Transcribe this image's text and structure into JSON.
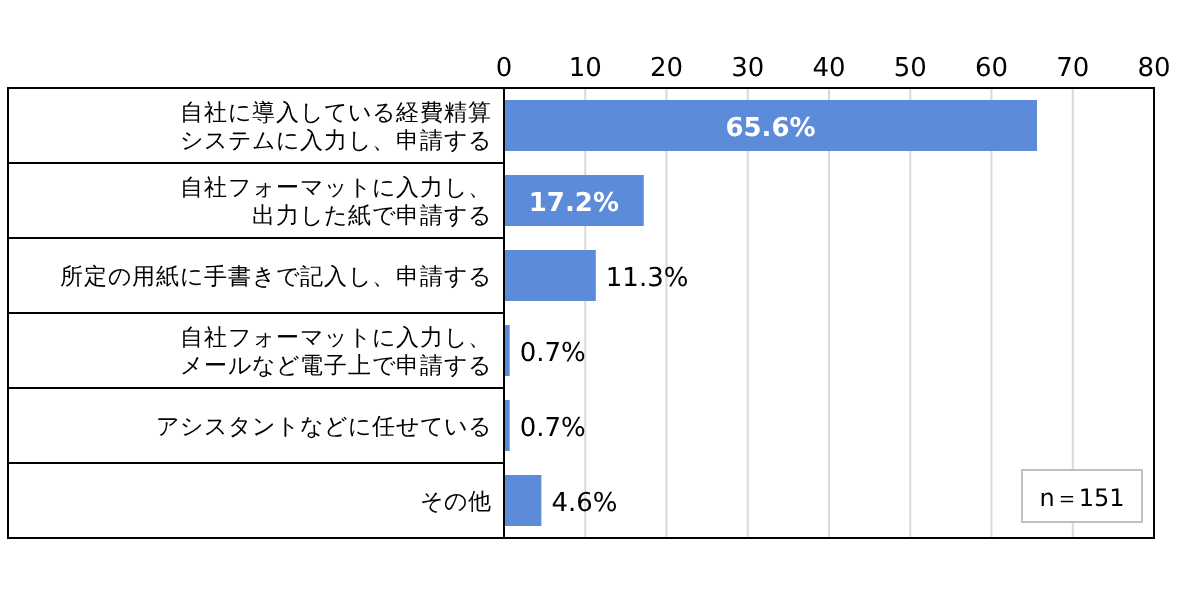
{
  "chart_data": {
    "type": "bar",
    "orientation": "horizontal",
    "categories": [
      "自社に導入している経費精算システムに入力し、申請する",
      "自社フォーマットに入力し、出力した紙で申請する",
      "所定の用紙に手書きで記入し、申請する",
      "自社フォーマットに入力し、メールなど電子上で申請する",
      "アシスタントなどに任せている",
      "その他"
    ],
    "values": [
      65.6,
      17.2,
      11.3,
      0.7,
      0.7,
      4.6
    ],
    "value_labels": [
      "65.6%",
      "17.2%",
      "11.3%",
      "0.7%",
      "0.7%",
      "4.6%"
    ],
    "color": "#5b8bd9",
    "xlim": [
      0,
      80
    ],
    "xticks": [
      0,
      10,
      20,
      30,
      40,
      50,
      60,
      70,
      80
    ],
    "grid": "x",
    "annotations": [
      "n＝151"
    ]
  }
}
